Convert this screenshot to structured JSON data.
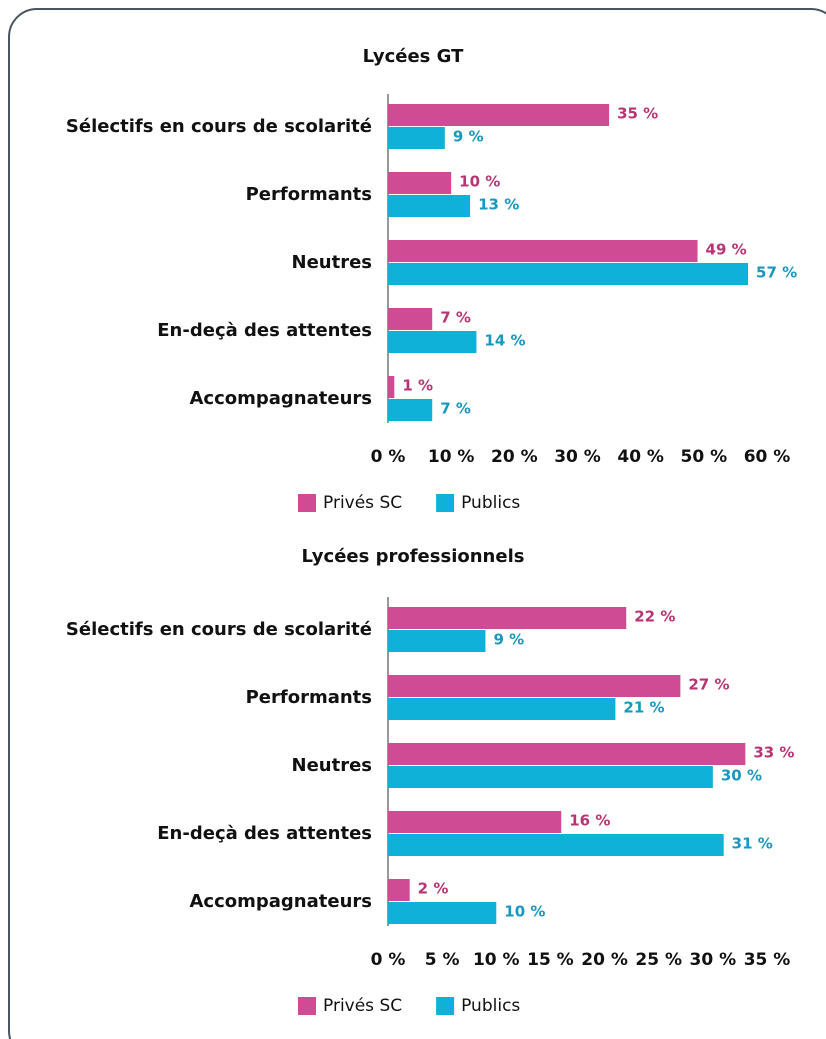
{
  "chart_data": [
    {
      "type": "bar",
      "orientation": "horizontal",
      "title": "Lycées GT",
      "categories": [
        "Sélectifs en cours de scolarité",
        "Performants",
        "Neutres",
        "En-deçà des attentes",
        "Accompagnateurs"
      ],
      "series": [
        {
          "name": "Privés SC",
          "color": "#cf4b93",
          "values": [
            35,
            10,
            49,
            7,
            1
          ],
          "value_labels": [
            "35 %",
            "10 %",
            "49 %",
            "7 %",
            "1 %"
          ]
        },
        {
          "name": "Publics",
          "color": "#10b1d8",
          "values": [
            9,
            13,
            57,
            14,
            7
          ],
          "value_labels": [
            "9 %",
            "13 %",
            "57 %",
            "14 %",
            "7 %"
          ]
        }
      ],
      "xlim": [
        0,
        60
      ],
      "xticks": [
        {
          "value": 0,
          "label": "0 %"
        },
        {
          "value": 10,
          "label": "10 %"
        },
        {
          "value": 20,
          "label": "20 %"
        },
        {
          "value": 30,
          "label": "30 %"
        },
        {
          "value": 40,
          "label": "40 %"
        },
        {
          "value": 50,
          "label": "50 %"
        },
        {
          "value": 60,
          "label": "60 %"
        }
      ],
      "legend": "bottom"
    },
    {
      "type": "bar",
      "orientation": "horizontal",
      "title": "Lycées professionnels",
      "categories": [
        "Sélectifs en cours de scolarité",
        "Performants",
        "Neutres",
        "En-deçà des attentes",
        "Accompagnateurs"
      ],
      "series": [
        {
          "name": "Privés SC",
          "color": "#cf4b93",
          "values": [
            22,
            27,
            33,
            16,
            2
          ],
          "value_labels": [
            "22 %",
            "27 %",
            "33 %",
            "16 %",
            "2 %"
          ]
        },
        {
          "name": "Publics",
          "color": "#10b1d8",
          "values": [
            9,
            21,
            30,
            31,
            10
          ],
          "value_labels": [
            "9 %",
            "21 %",
            "30 %",
            "31 %",
            "10 %"
          ]
        }
      ],
      "xlim": [
        0,
        35
      ],
      "xticks": [
        {
          "value": 0,
          "label": "0 %"
        },
        {
          "value": 5,
          "label": "5 %"
        },
        {
          "value": 10,
          "label": "10 %"
        },
        {
          "value": 15,
          "label": "15 %"
        },
        {
          "value": 20,
          "label": "20 %"
        },
        {
          "value": 25,
          "label": "25 %"
        },
        {
          "value": 30,
          "label": "30 %"
        },
        {
          "value": 35,
          "label": "35 %"
        }
      ],
      "legend": "bottom"
    }
  ]
}
